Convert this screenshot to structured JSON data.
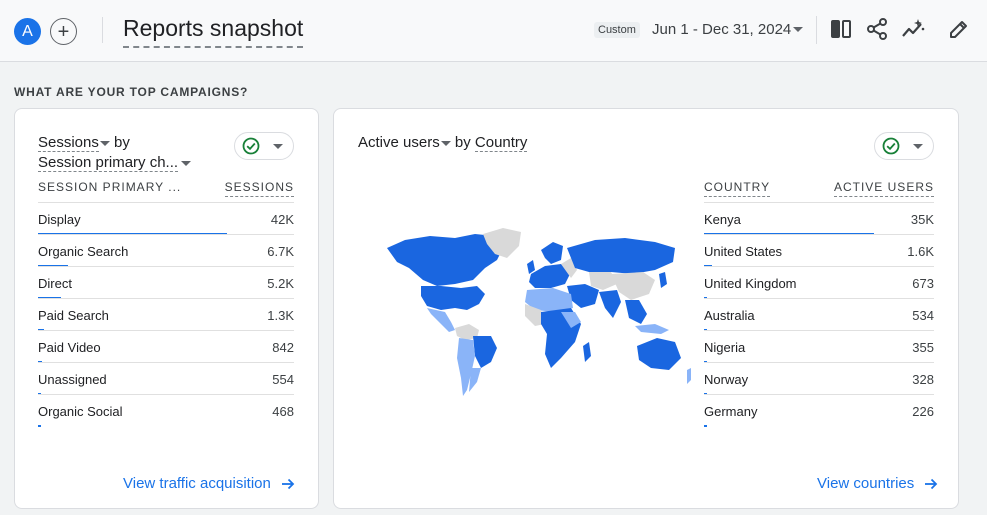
{
  "header": {
    "avatar_letter": "A",
    "add_label": "+",
    "title": "Reports snapshot",
    "date_chip": "Custom",
    "date_range": "Jun 1 - Dec 31, 2024"
  },
  "section_label": "WHAT ARE YOUR TOP CAMPAIGNS?",
  "left_card": {
    "metric": "Sessions",
    "by": "by",
    "dimension": "Session primary ch...",
    "col_dimension": "SESSION PRIMARY ...",
    "col_metric": "SESSIONS",
    "rows": [
      {
        "label": "Display",
        "value": "42K",
        "share": 1.0
      },
      {
        "label": "Organic Search",
        "value": "6.7K",
        "share": 0.16
      },
      {
        "label": "Direct",
        "value": "5.2K",
        "share": 0.124
      },
      {
        "label": "Paid Search",
        "value": "1.3K",
        "share": 0.031
      },
      {
        "label": "Paid Video",
        "value": "842",
        "share": 0.02
      },
      {
        "label": "Unassigned",
        "value": "554",
        "share": 0.013
      },
      {
        "label": "Organic Social",
        "value": "468",
        "share": 0.011
      }
    ],
    "link": "View traffic acquisition"
  },
  "right_card": {
    "metric": "Active users",
    "by": "by",
    "dimension": "Country",
    "col_dimension": "COUNTRY",
    "col_metric": "ACTIVE USERS",
    "rows": [
      {
        "label": "Kenya",
        "value": "35K",
        "share": 1.0
      },
      {
        "label": "United States",
        "value": "1.6K",
        "share": 0.046
      },
      {
        "label": "United Kingdom",
        "value": "673",
        "share": 0.019
      },
      {
        "label": "Australia",
        "value": "534",
        "share": 0.015
      },
      {
        "label": "Nigeria",
        "value": "355",
        "share": 0.01
      },
      {
        "label": "Norway",
        "value": "328",
        "share": 0.009
      },
      {
        "label": "Germany",
        "value": "226",
        "share": 0.006
      }
    ],
    "link": "View countries"
  },
  "colors": {
    "accent": "#1a73e8",
    "map_dark": "#1a66e0",
    "map_light": "#8ab4f8",
    "map_none": "#d9d9d9",
    "success": "#188038"
  },
  "icons": [
    "compare-icon",
    "share-icon",
    "insights-icon",
    "edit-icon",
    "check-circle-icon",
    "arrow-right-icon"
  ]
}
